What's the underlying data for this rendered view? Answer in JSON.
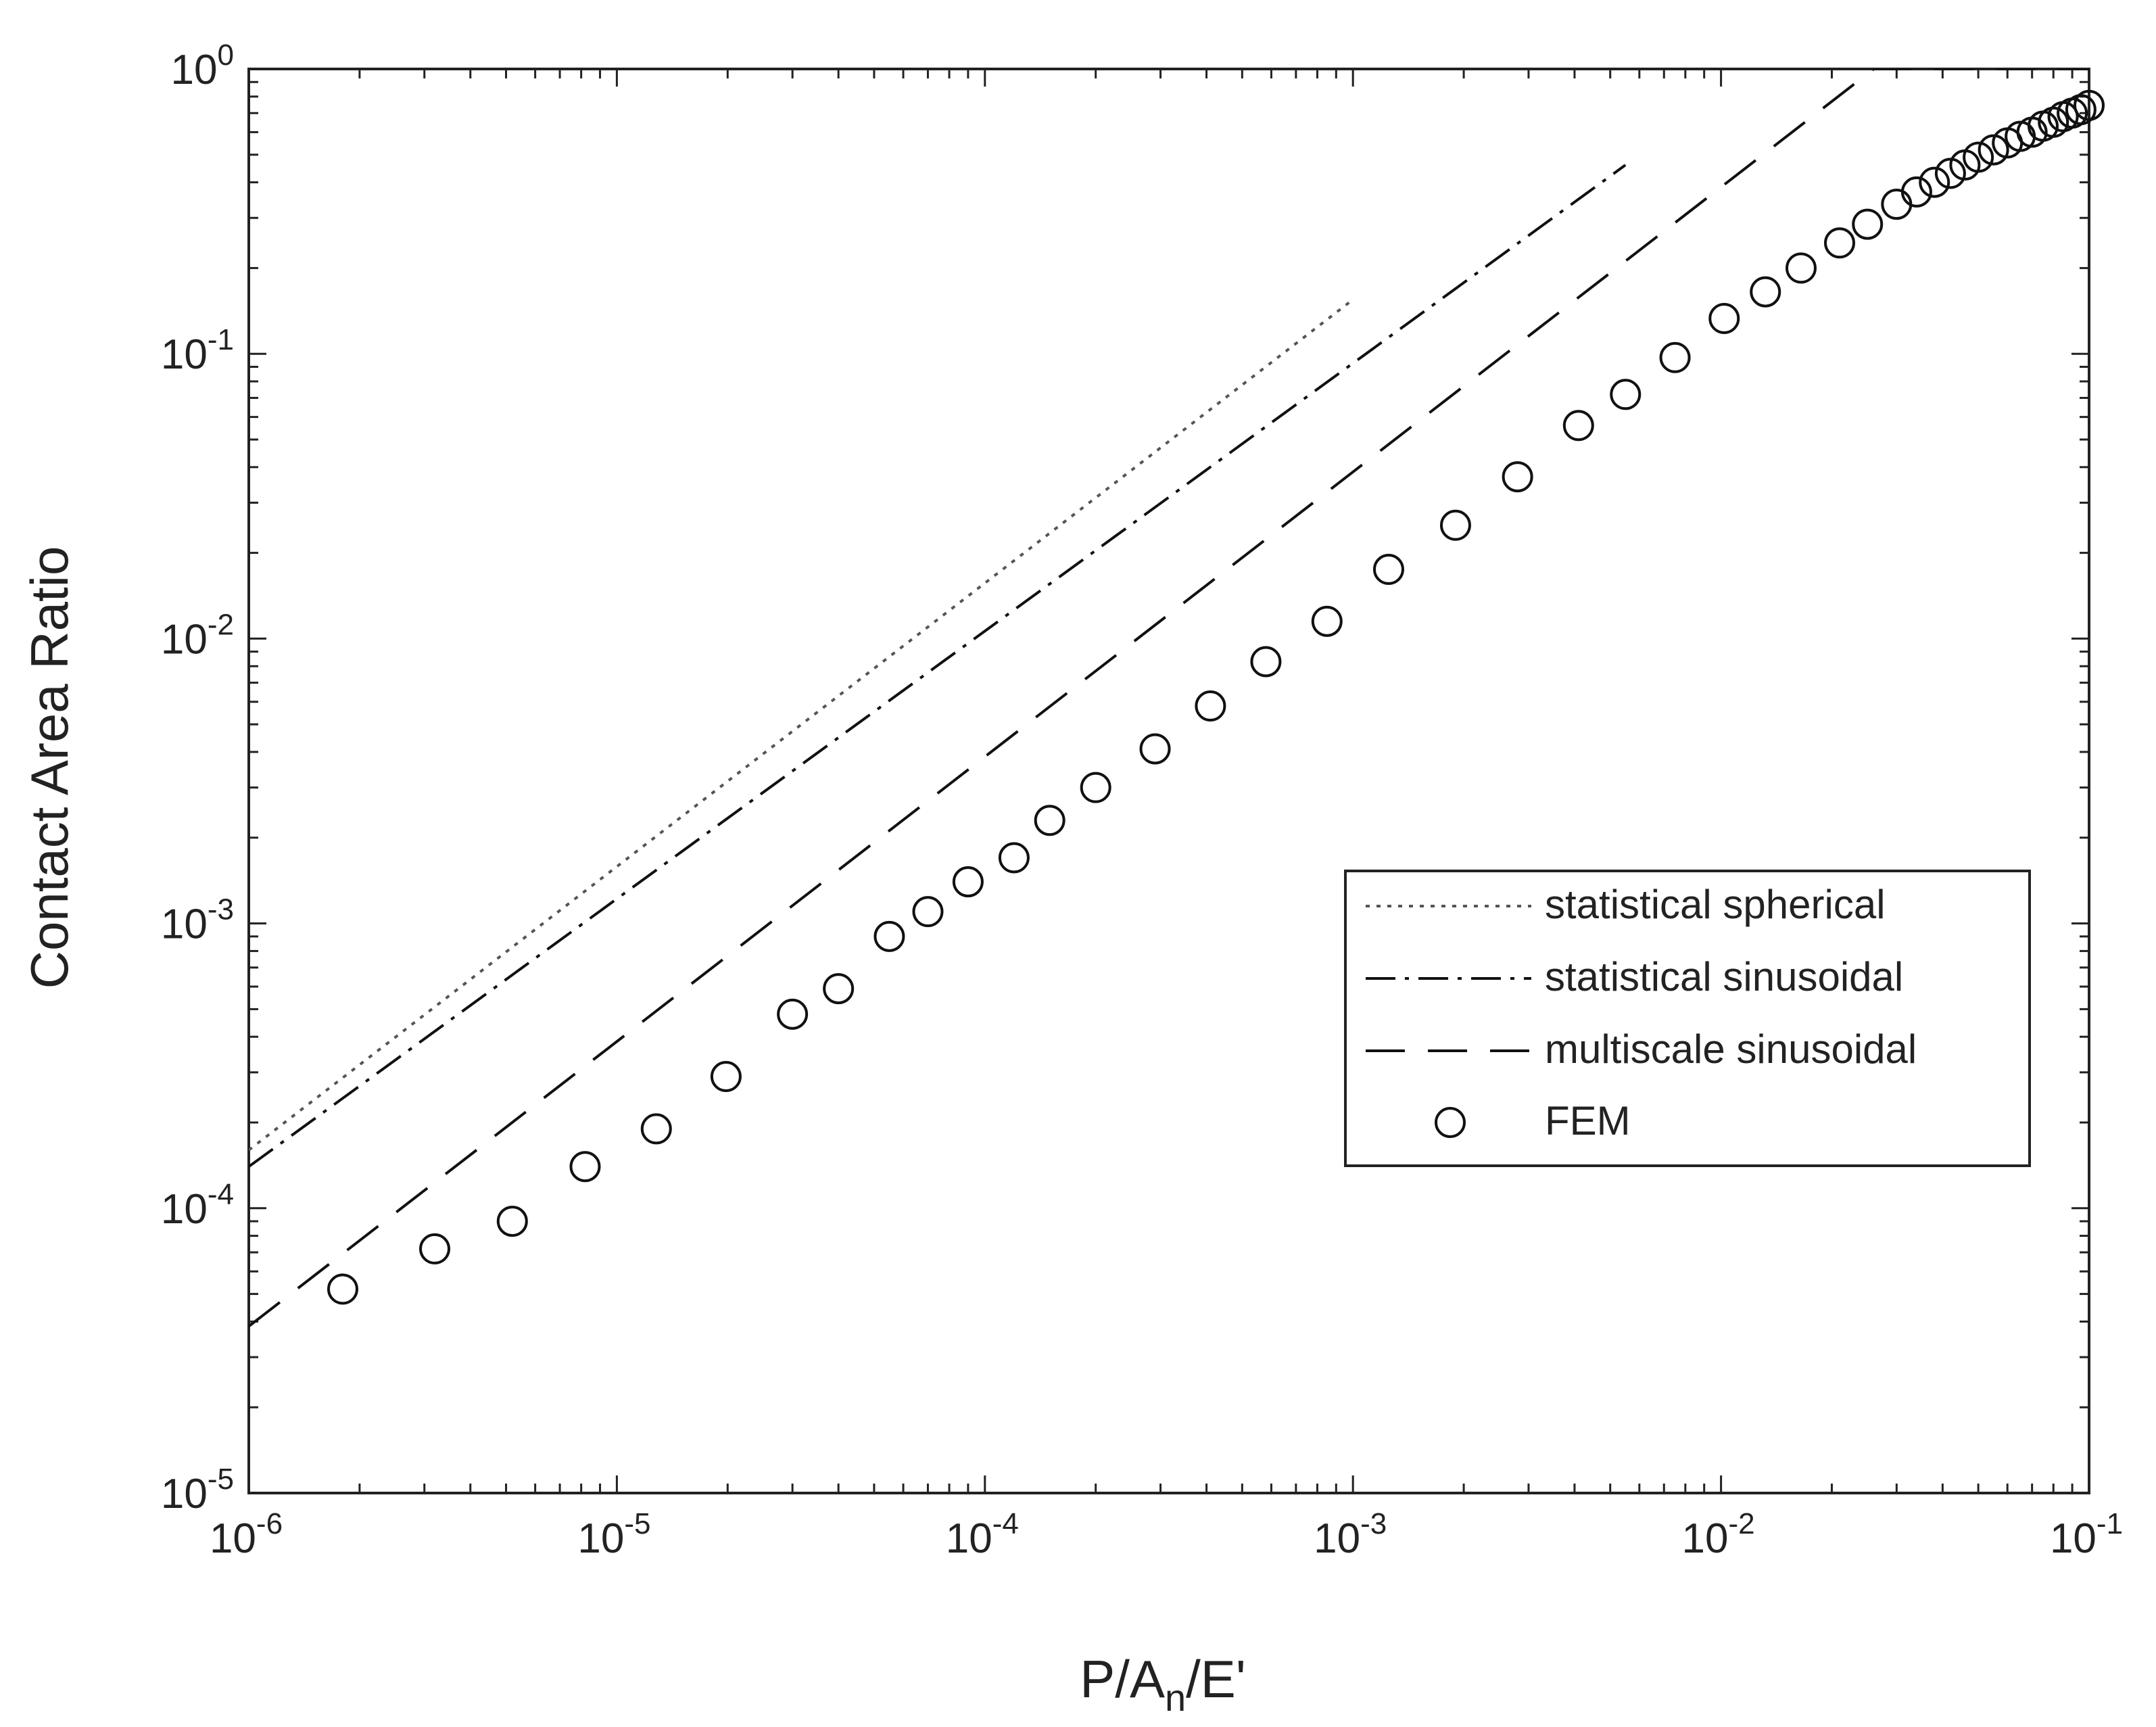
{
  "chart_data": {
    "type": "line",
    "xscale": "log",
    "yscale": "log",
    "xlim": [
      1e-06,
      0.1
    ],
    "ylim": [
      1e-05,
      1
    ],
    "grid": false,
    "legend_position": "center-right",
    "xlabel": {
      "base": "P/A",
      "sub": "n",
      "tail": "/E'"
    },
    "ylabel": "Contact Area Ratio",
    "x_ticks": [
      {
        "base": "10",
        "exp": "-6"
      },
      {
        "base": "10",
        "exp": "-5"
      },
      {
        "base": "10",
        "exp": "-4"
      },
      {
        "base": "10",
        "exp": "-3"
      },
      {
        "base": "10",
        "exp": "-2"
      },
      {
        "base": "10",
        "exp": "-1"
      }
    ],
    "y_ticks": [
      {
        "base": "10",
        "exp": "-5"
      },
      {
        "base": "10",
        "exp": "-4"
      },
      {
        "base": "10",
        "exp": "-3"
      },
      {
        "base": "10",
        "exp": "-2"
      },
      {
        "base": "10",
        "exp": "-1"
      },
      {
        "base": "10",
        "exp": "0"
      }
    ],
    "series": [
      {
        "name": "statistical spherical",
        "style": "dotted",
        "color": "#555555",
        "x": [
          1e-06,
          0.001
        ],
        "y": [
          0.00016,
          0.155
        ]
      },
      {
        "name": "statistical sinusoidal",
        "style": "dashdot",
        "color": "#111111",
        "x": [
          1e-06,
          0.0055
        ],
        "y": [
          0.00014,
          0.46
        ]
      },
      {
        "name": "multiscale sinusoidal",
        "style": "dashed",
        "color": "#111111",
        "x": [
          1e-06,
          0.026,
          0.1
        ],
        "y": [
          3.85e-05,
          1.0,
          1.0
        ]
      },
      {
        "name": "FEM",
        "style": "markers",
        "marker": "circle",
        "color": "#111111",
        "x": [
          1.8e-06,
          3.2e-06,
          5.2e-06,
          8.2e-06,
          1.28e-05,
          1.98e-05,
          3e-05,
          4e-05,
          5.5e-05,
          7e-05,
          9e-05,
          0.00012,
          0.00015,
          0.0002,
          0.00029,
          0.00041,
          0.00058,
          0.00085,
          0.00125,
          0.0019,
          0.0028,
          0.0041,
          0.0055,
          0.0075,
          0.0102,
          0.0132,
          0.0165,
          0.021,
          0.025,
          0.03,
          0.034,
          0.038,
          0.042,
          0.046,
          0.05,
          0.055,
          0.06,
          0.065,
          0.07,
          0.075,
          0.08,
          0.085,
          0.09,
          0.095,
          0.1
        ],
        "y": [
          5.2e-05,
          7.2e-05,
          9e-05,
          0.00014,
          0.00019,
          0.00029,
          0.00048,
          0.00059,
          0.0009,
          0.0011,
          0.0014,
          0.0017,
          0.0023,
          0.003,
          0.0041,
          0.0058,
          0.0083,
          0.0115,
          0.0175,
          0.025,
          0.037,
          0.056,
          0.072,
          0.097,
          0.133,
          0.165,
          0.2,
          0.245,
          0.285,
          0.335,
          0.37,
          0.4,
          0.43,
          0.46,
          0.49,
          0.52,
          0.55,
          0.58,
          0.6,
          0.63,
          0.65,
          0.68,
          0.7,
          0.72,
          0.745
        ]
      }
    ]
  }
}
